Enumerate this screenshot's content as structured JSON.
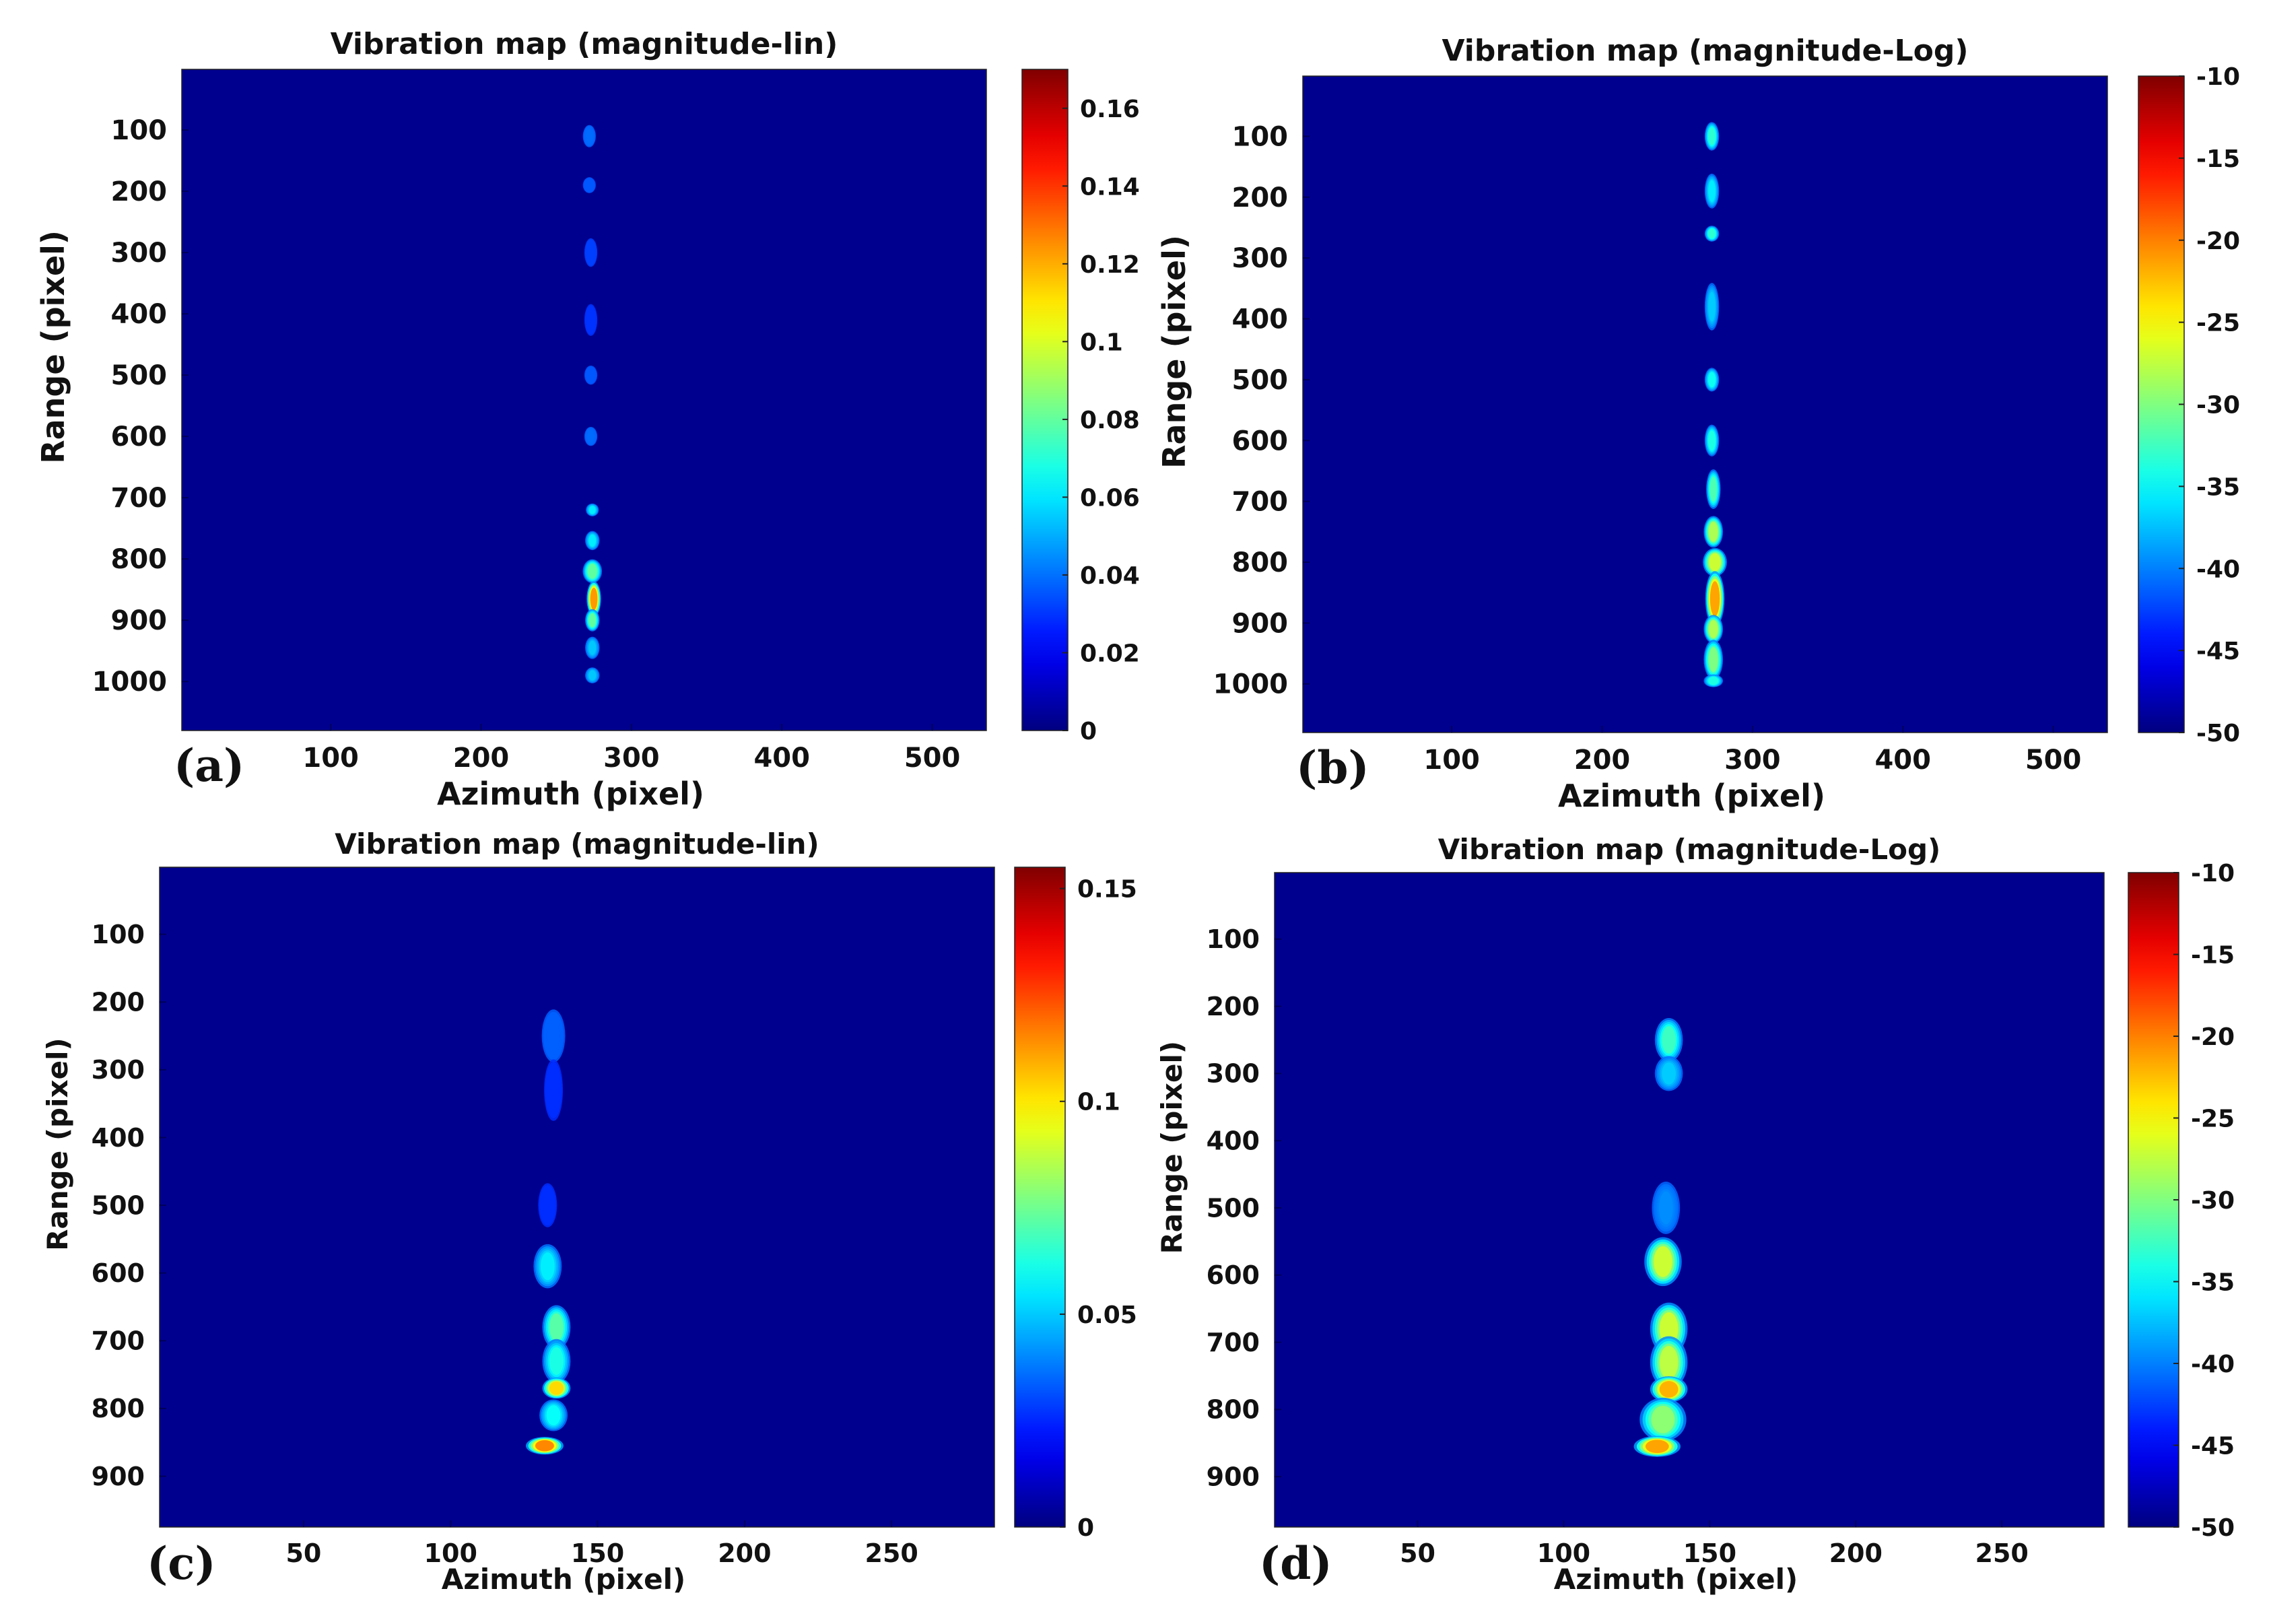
{
  "colormap": "jet",
  "background_color": "#00008f",
  "chart_data": [
    {
      "type": "heatmap",
      "panel": "(a)",
      "title": "Vibration map (magnitude-lin)",
      "xlabel": "Azimuth (pixel)",
      "ylabel": "Range (pixel)",
      "xlim": [
        1,
        536
      ],
      "ylim": [
        1,
        1080
      ],
      "y_reversed": true,
      "xticks": [
        100,
        200,
        300,
        400,
        500
      ],
      "yticks": [
        100,
        200,
        300,
        400,
        500,
        600,
        700,
        800,
        900,
        1000
      ],
      "colorbar": {
        "min": 0,
        "max": 0.17,
        "ticks": [
          0,
          0.02,
          0.04,
          0.06,
          0.08,
          0.1,
          0.12,
          0.14,
          0.16
        ]
      },
      "grid": false,
      "hotspots": [
        {
          "x": 272,
          "y": 110,
          "value": 0.025,
          "sx": 2,
          "sy": 14
        },
        {
          "x": 272,
          "y": 190,
          "value": 0.02,
          "sx": 2,
          "sy": 10
        },
        {
          "x": 273,
          "y": 300,
          "value": 0.015,
          "sx": 2,
          "sy": 18
        },
        {
          "x": 273,
          "y": 410,
          "value": 0.012,
          "sx": 2,
          "sy": 20
        },
        {
          "x": 273,
          "y": 500,
          "value": 0.02,
          "sx": 2,
          "sy": 12
        },
        {
          "x": 273,
          "y": 600,
          "value": 0.025,
          "sx": 2,
          "sy": 12
        },
        {
          "x": 274,
          "y": 720,
          "value": 0.06,
          "sx": 2,
          "sy": 8
        },
        {
          "x": 274,
          "y": 770,
          "value": 0.06,
          "sx": 3,
          "sy": 12
        },
        {
          "x": 274,
          "y": 820,
          "value": 0.09,
          "sx": 4,
          "sy": 15
        },
        {
          "x": 275,
          "y": 865,
          "value": 0.16,
          "sx": 3,
          "sy": 22
        },
        {
          "x": 274,
          "y": 900,
          "value": 0.09,
          "sx": 3,
          "sy": 14
        },
        {
          "x": 274,
          "y": 945,
          "value": 0.05,
          "sx": 3,
          "sy": 14
        },
        {
          "x": 274,
          "y": 990,
          "value": 0.05,
          "sx": 3,
          "sy": 10
        }
      ]
    },
    {
      "type": "heatmap",
      "panel": "(b)",
      "title": "Vibration map (magnitude-Log)",
      "xlabel": "Azimuth (pixel)",
      "ylabel": "Range (pixel)",
      "xlim": [
        1,
        536
      ],
      "ylim": [
        1,
        1080
      ],
      "y_reversed": true,
      "xticks": [
        100,
        200,
        300,
        400,
        500
      ],
      "yticks": [
        100,
        200,
        300,
        400,
        500,
        600,
        700,
        800,
        900,
        1000
      ],
      "colorbar": {
        "min": -50,
        "max": -10,
        "ticks": [
          -50,
          -45,
          -40,
          -35,
          -30,
          -25,
          -20,
          -15,
          -10
        ]
      },
      "grid": false,
      "hotspots": [
        {
          "x": 273,
          "y": 100,
          "value": -32,
          "sx": 3,
          "sy": 18
        },
        {
          "x": 273,
          "y": 190,
          "value": -36,
          "sx": 3,
          "sy": 22
        },
        {
          "x": 273,
          "y": 260,
          "value": -32,
          "sx": 3,
          "sy": 10
        },
        {
          "x": 273,
          "y": 380,
          "value": -38,
          "sx": 3,
          "sy": 30
        },
        {
          "x": 273,
          "y": 500,
          "value": -34,
          "sx": 3,
          "sy": 15
        },
        {
          "x": 273,
          "y": 600,
          "value": -33,
          "sx": 3,
          "sy": 20
        },
        {
          "x": 274,
          "y": 680,
          "value": -30,
          "sx": 3,
          "sy": 25
        },
        {
          "x": 274,
          "y": 750,
          "value": -24,
          "sx": 4,
          "sy": 20
        },
        {
          "x": 275,
          "y": 800,
          "value": -22,
          "sx": 5,
          "sy": 18
        },
        {
          "x": 275,
          "y": 860,
          "value": -13,
          "sx": 4,
          "sy": 35
        },
        {
          "x": 274,
          "y": 910,
          "value": -24,
          "sx": 4,
          "sy": 18
        },
        {
          "x": 274,
          "y": 960,
          "value": -27,
          "sx": 4,
          "sy": 25
        },
        {
          "x": 274,
          "y": 995,
          "value": -33,
          "sx": 4,
          "sy": 8
        }
      ]
    },
    {
      "type": "heatmap",
      "panel": "(c)",
      "title": "Vibration map (magnitude-lin)",
      "xlabel": "Azimuth (pixel)",
      "ylabel": "Range (pixel)",
      "xlim": [
        1,
        285
      ],
      "ylim": [
        1,
        975
      ],
      "y_reversed": true,
      "xticks": [
        50,
        100,
        150,
        200,
        250
      ],
      "yticks": [
        100,
        200,
        300,
        400,
        500,
        600,
        700,
        800,
        900
      ],
      "colorbar": {
        "min": 0,
        "max": 0.155,
        "ticks": [
          0,
          0.05,
          0.1,
          0.15
        ]
      },
      "grid": false,
      "hotspots": [
        {
          "x": 135,
          "y": 250,
          "value": 0.02,
          "sx": 2.5,
          "sy": 30
        },
        {
          "x": 135,
          "y": 330,
          "value": 0.01,
          "sx": 2,
          "sy": 35
        },
        {
          "x": 133,
          "y": 500,
          "value": 0.01,
          "sx": 2,
          "sy": 25
        },
        {
          "x": 133,
          "y": 590,
          "value": 0.055,
          "sx": 3,
          "sy": 25
        },
        {
          "x": 136,
          "y": 680,
          "value": 0.08,
          "sx": 3,
          "sy": 25
        },
        {
          "x": 136,
          "y": 730,
          "value": 0.065,
          "sx": 3,
          "sy": 25
        },
        {
          "x": 136,
          "y": 770,
          "value": 0.13,
          "sx": 3,
          "sy": 12
        },
        {
          "x": 135,
          "y": 810,
          "value": 0.06,
          "sx": 3,
          "sy": 18
        },
        {
          "x": 132,
          "y": 855,
          "value": 0.15,
          "sx": 4,
          "sy": 10
        }
      ]
    },
    {
      "type": "heatmap",
      "panel": "(d)",
      "title": "Vibration map (magnitude-Log)",
      "xlabel": "Azimuth (pixel)",
      "ylabel": "Range (pixel)",
      "xlim": [
        1,
        285
      ],
      "ylim": [
        1,
        975
      ],
      "y_reversed": true,
      "xticks": [
        50,
        100,
        150,
        200,
        250
      ],
      "yticks": [
        100,
        200,
        300,
        400,
        500,
        600,
        700,
        800,
        900
      ],
      "colorbar": {
        "min": -50,
        "max": -10,
        "ticks": [
          -50,
          -45,
          -40,
          -35,
          -30,
          -25,
          -20,
          -15,
          -10
        ]
      },
      "grid": false,
      "hotspots": [
        {
          "x": 136,
          "y": 250,
          "value": -31,
          "sx": 3,
          "sy": 25
        },
        {
          "x": 136,
          "y": 300,
          "value": -38,
          "sx": 3,
          "sy": 20
        },
        {
          "x": 135,
          "y": 500,
          "value": -42,
          "sx": 3,
          "sy": 30
        },
        {
          "x": 134,
          "y": 580,
          "value": -22,
          "sx": 4,
          "sy": 28
        },
        {
          "x": 136,
          "y": 680,
          "value": -22,
          "sx": 4,
          "sy": 30
        },
        {
          "x": 136,
          "y": 730,
          "value": -23,
          "sx": 4,
          "sy": 30
        },
        {
          "x": 136,
          "y": 770,
          "value": -14,
          "sx": 4,
          "sy": 15
        },
        {
          "x": 134,
          "y": 815,
          "value": -26,
          "sx": 5,
          "sy": 25
        },
        {
          "x": 132,
          "y": 855,
          "value": -13,
          "sx": 5,
          "sy": 12
        }
      ]
    }
  ]
}
